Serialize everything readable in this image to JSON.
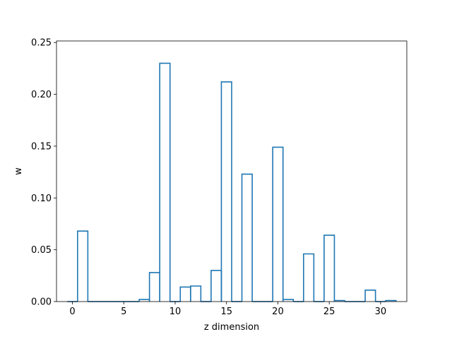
{
  "chart_data": {
    "type": "bar",
    "style": "step-histogram",
    "x": [
      0,
      1,
      2,
      3,
      4,
      5,
      6,
      7,
      8,
      9,
      10,
      11,
      12,
      13,
      14,
      15,
      16,
      17,
      18,
      19,
      20,
      21,
      22,
      23,
      24,
      25,
      26,
      27,
      28,
      29,
      30,
      31
    ],
    "values": [
      0.0,
      0.068,
      0.0,
      0.0,
      0.0,
      0.0,
      0.0,
      0.002,
      0.028,
      0.23,
      0.0,
      0.014,
      0.015,
      0.0,
      0.03,
      0.212,
      0.0,
      0.123,
      0.0,
      0.0,
      0.149,
      0.002,
      0.0,
      0.046,
      0.0,
      0.064,
      0.001,
      0.0,
      0.0,
      0.011,
      0.0,
      0.001
    ],
    "title": "",
    "xlabel": "z dimension",
    "ylabel": "w",
    "xlim": [
      -1.55,
      32.55
    ],
    "ylim": [
      0,
      0.2515
    ],
    "xticks": [
      0,
      5,
      10,
      15,
      20,
      25,
      30
    ],
    "xtick_labels": [
      "0",
      "5",
      "10",
      "15",
      "20",
      "25",
      "30"
    ],
    "yticks": [
      0,
      0.05,
      0.1,
      0.15,
      0.2,
      0.25
    ],
    "ytick_labels": [
      "0.00",
      "0.05",
      "0.10",
      "0.15",
      "0.20",
      "0.25"
    ],
    "grid": false,
    "legend": "none",
    "colors": {
      "series": "#1f77b4"
    }
  }
}
